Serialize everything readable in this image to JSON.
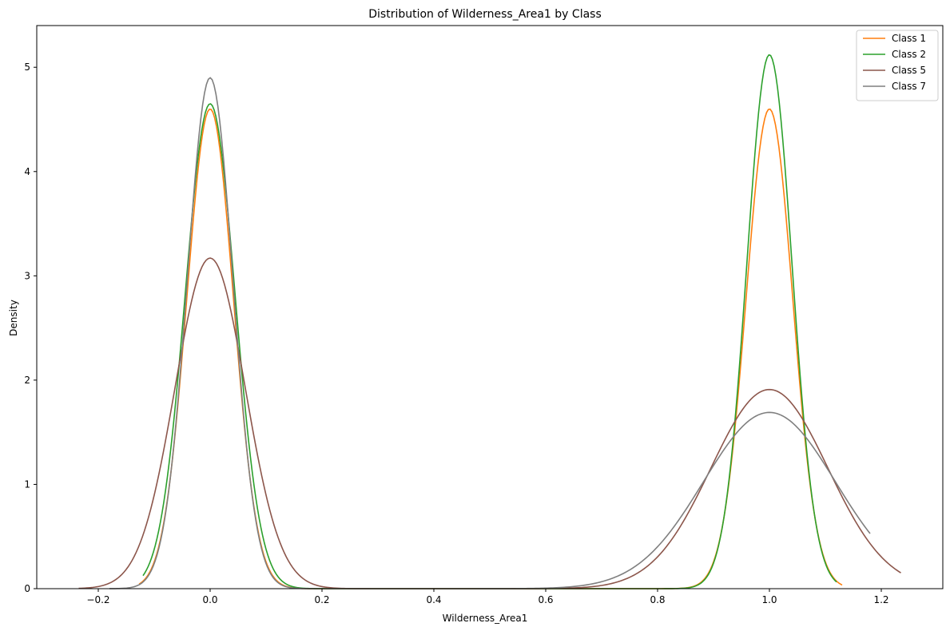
{
  "chart_data": {
    "type": "line",
    "title": "Distribution of Wilderness_Area1 by Class",
    "xlabel": "Wilderness_Area1",
    "ylabel": "Density",
    "xlim": [
      -0.31,
      1.31
    ],
    "ylim": [
      0,
      5.4
    ],
    "xticks": [
      -0.2,
      0.0,
      0.2,
      0.4,
      0.6,
      0.8,
      1.0,
      1.2
    ],
    "xtick_labels": [
      "−0.2",
      "0.0",
      "0.2",
      "0.4",
      "0.6",
      "0.8",
      "1.0",
      "1.2"
    ],
    "yticks": [
      0,
      1,
      2,
      3,
      4,
      5
    ],
    "ytick_labels": [
      "0",
      "1",
      "2",
      "3",
      "4",
      "5"
    ],
    "grid": false,
    "legend_position": "top-right",
    "series": [
      {
        "name": "Class 1",
        "color": "#ff7f0e",
        "x_range": [
          -0.127,
          1.13
        ],
        "peaks": [
          {
            "x": 0.0,
            "height": 4.6
          },
          {
            "x": 1.0,
            "height": 4.6
          }
        ]
      },
      {
        "name": "Class 2",
        "color": "#2ca02c",
        "x_range": [
          -0.12,
          1.12
        ],
        "peaks": [
          {
            "x": 0.0,
            "height": 4.65
          },
          {
            "x": 1.0,
            "height": 5.12
          }
        ]
      },
      {
        "name": "Class 5",
        "color": "#8c564b",
        "x_range": [
          -0.235,
          1.235
        ],
        "peaks": [
          {
            "x": 0.0,
            "height": 3.17
          },
          {
            "x": 1.0,
            "height": 1.91
          }
        ]
      },
      {
        "name": "Class 7",
        "color": "#7f7f7f",
        "x_range": [
          -0.18,
          1.18
        ],
        "peaks": [
          {
            "x": 0.0,
            "height": 4.9
          },
          {
            "x": 1.0,
            "height": 1.69
          }
        ]
      }
    ]
  }
}
